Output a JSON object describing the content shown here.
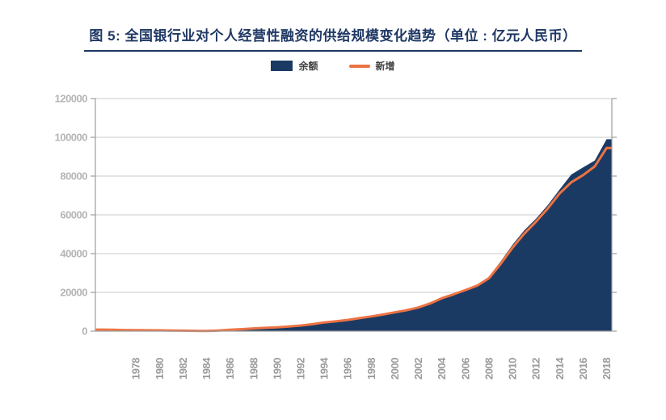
{
  "title": {
    "text": "图 5: 全国银行业对个人经营性融资的供给规模变化趋势（单位 : 亿元人民币）"
  },
  "legend": {
    "items": [
      {
        "label": "余额",
        "type": "area",
        "color": "#1b3a63"
      },
      {
        "label": "新增",
        "type": "line",
        "color": "#ed7343"
      }
    ]
  },
  "colors": {
    "area": "#1b3a63",
    "line": "#ed7343",
    "title": "#1f3864",
    "grid": "#cbcbcb",
    "axis": "#9e9e9e",
    "y_tick_label": "#b5b5b5",
    "x_tick_label": "#9b9b9b",
    "legend_text": "#404040",
    "background": "#ffffff"
  },
  "chart_data": {
    "type": "area",
    "title": "图 5: 全国银行业对个人经营性融资的供给规模变化趋势（单位 : 亿元人民币）",
    "xlabel": "",
    "ylabel": "",
    "ylim": [
      0,
      120000
    ],
    "ytick_step": 20000,
    "yticks": [
      0,
      20000,
      40000,
      60000,
      80000,
      100000,
      120000
    ],
    "grid": "horizontal",
    "legend_position": "top",
    "x": [
      1975,
      1976,
      1977,
      1978,
      1979,
      1980,
      1981,
      1982,
      1983,
      1984,
      1985,
      1986,
      1987,
      1988,
      1989,
      1990,
      1991,
      1992,
      1993,
      1994,
      1995,
      1996,
      1997,
      1998,
      1999,
      2000,
      2001,
      2002,
      2003,
      2004,
      2005,
      2006,
      2007,
      2008,
      2009,
      2010,
      2011,
      2012,
      2013,
      2014,
      2015,
      2016,
      2017,
      2018
    ],
    "xticks": [
      1978,
      1980,
      1982,
      1984,
      1986,
      1988,
      1990,
      1992,
      1994,
      1996,
      1998,
      2000,
      2002,
      2004,
      2006,
      2008,
      2010,
      2012,
      2014,
      2016,
      2018
    ],
    "series": [
      {
        "name": "余额",
        "style": "area",
        "color": "#1b3a63",
        "values": [
          800,
          700,
          600,
          500,
          450,
          400,
          350,
          250,
          150,
          100,
          350,
          700,
          1050,
          1400,
          1700,
          2000,
          2400,
          2900,
          3600,
          4500,
          5100,
          5800,
          6700,
          7600,
          8600,
          9700,
          10800,
          12200,
          14500,
          17400,
          19400,
          21500,
          24000,
          28000,
          36000,
          44500,
          52000,
          58000,
          65000,
          73000,
          80800,
          84500,
          88000,
          99000
        ]
      },
      {
        "name": "新增",
        "style": "line",
        "color": "#ed7343",
        "values": [
          800,
          700,
          600,
          500,
          450,
          400,
          350,
          250,
          150,
          100,
          350,
          700,
          1050,
          1400,
          1700,
          2000,
          2400,
          2900,
          3600,
          4500,
          5100,
          5800,
          6700,
          7600,
          8600,
          9700,
          10800,
          12200,
          14300,
          17000,
          19000,
          21200,
          23500,
          27300,
          34800,
          43000,
          50300,
          56500,
          63300,
          71000,
          76800,
          80500,
          85000,
          94500
        ]
      }
    ]
  }
}
